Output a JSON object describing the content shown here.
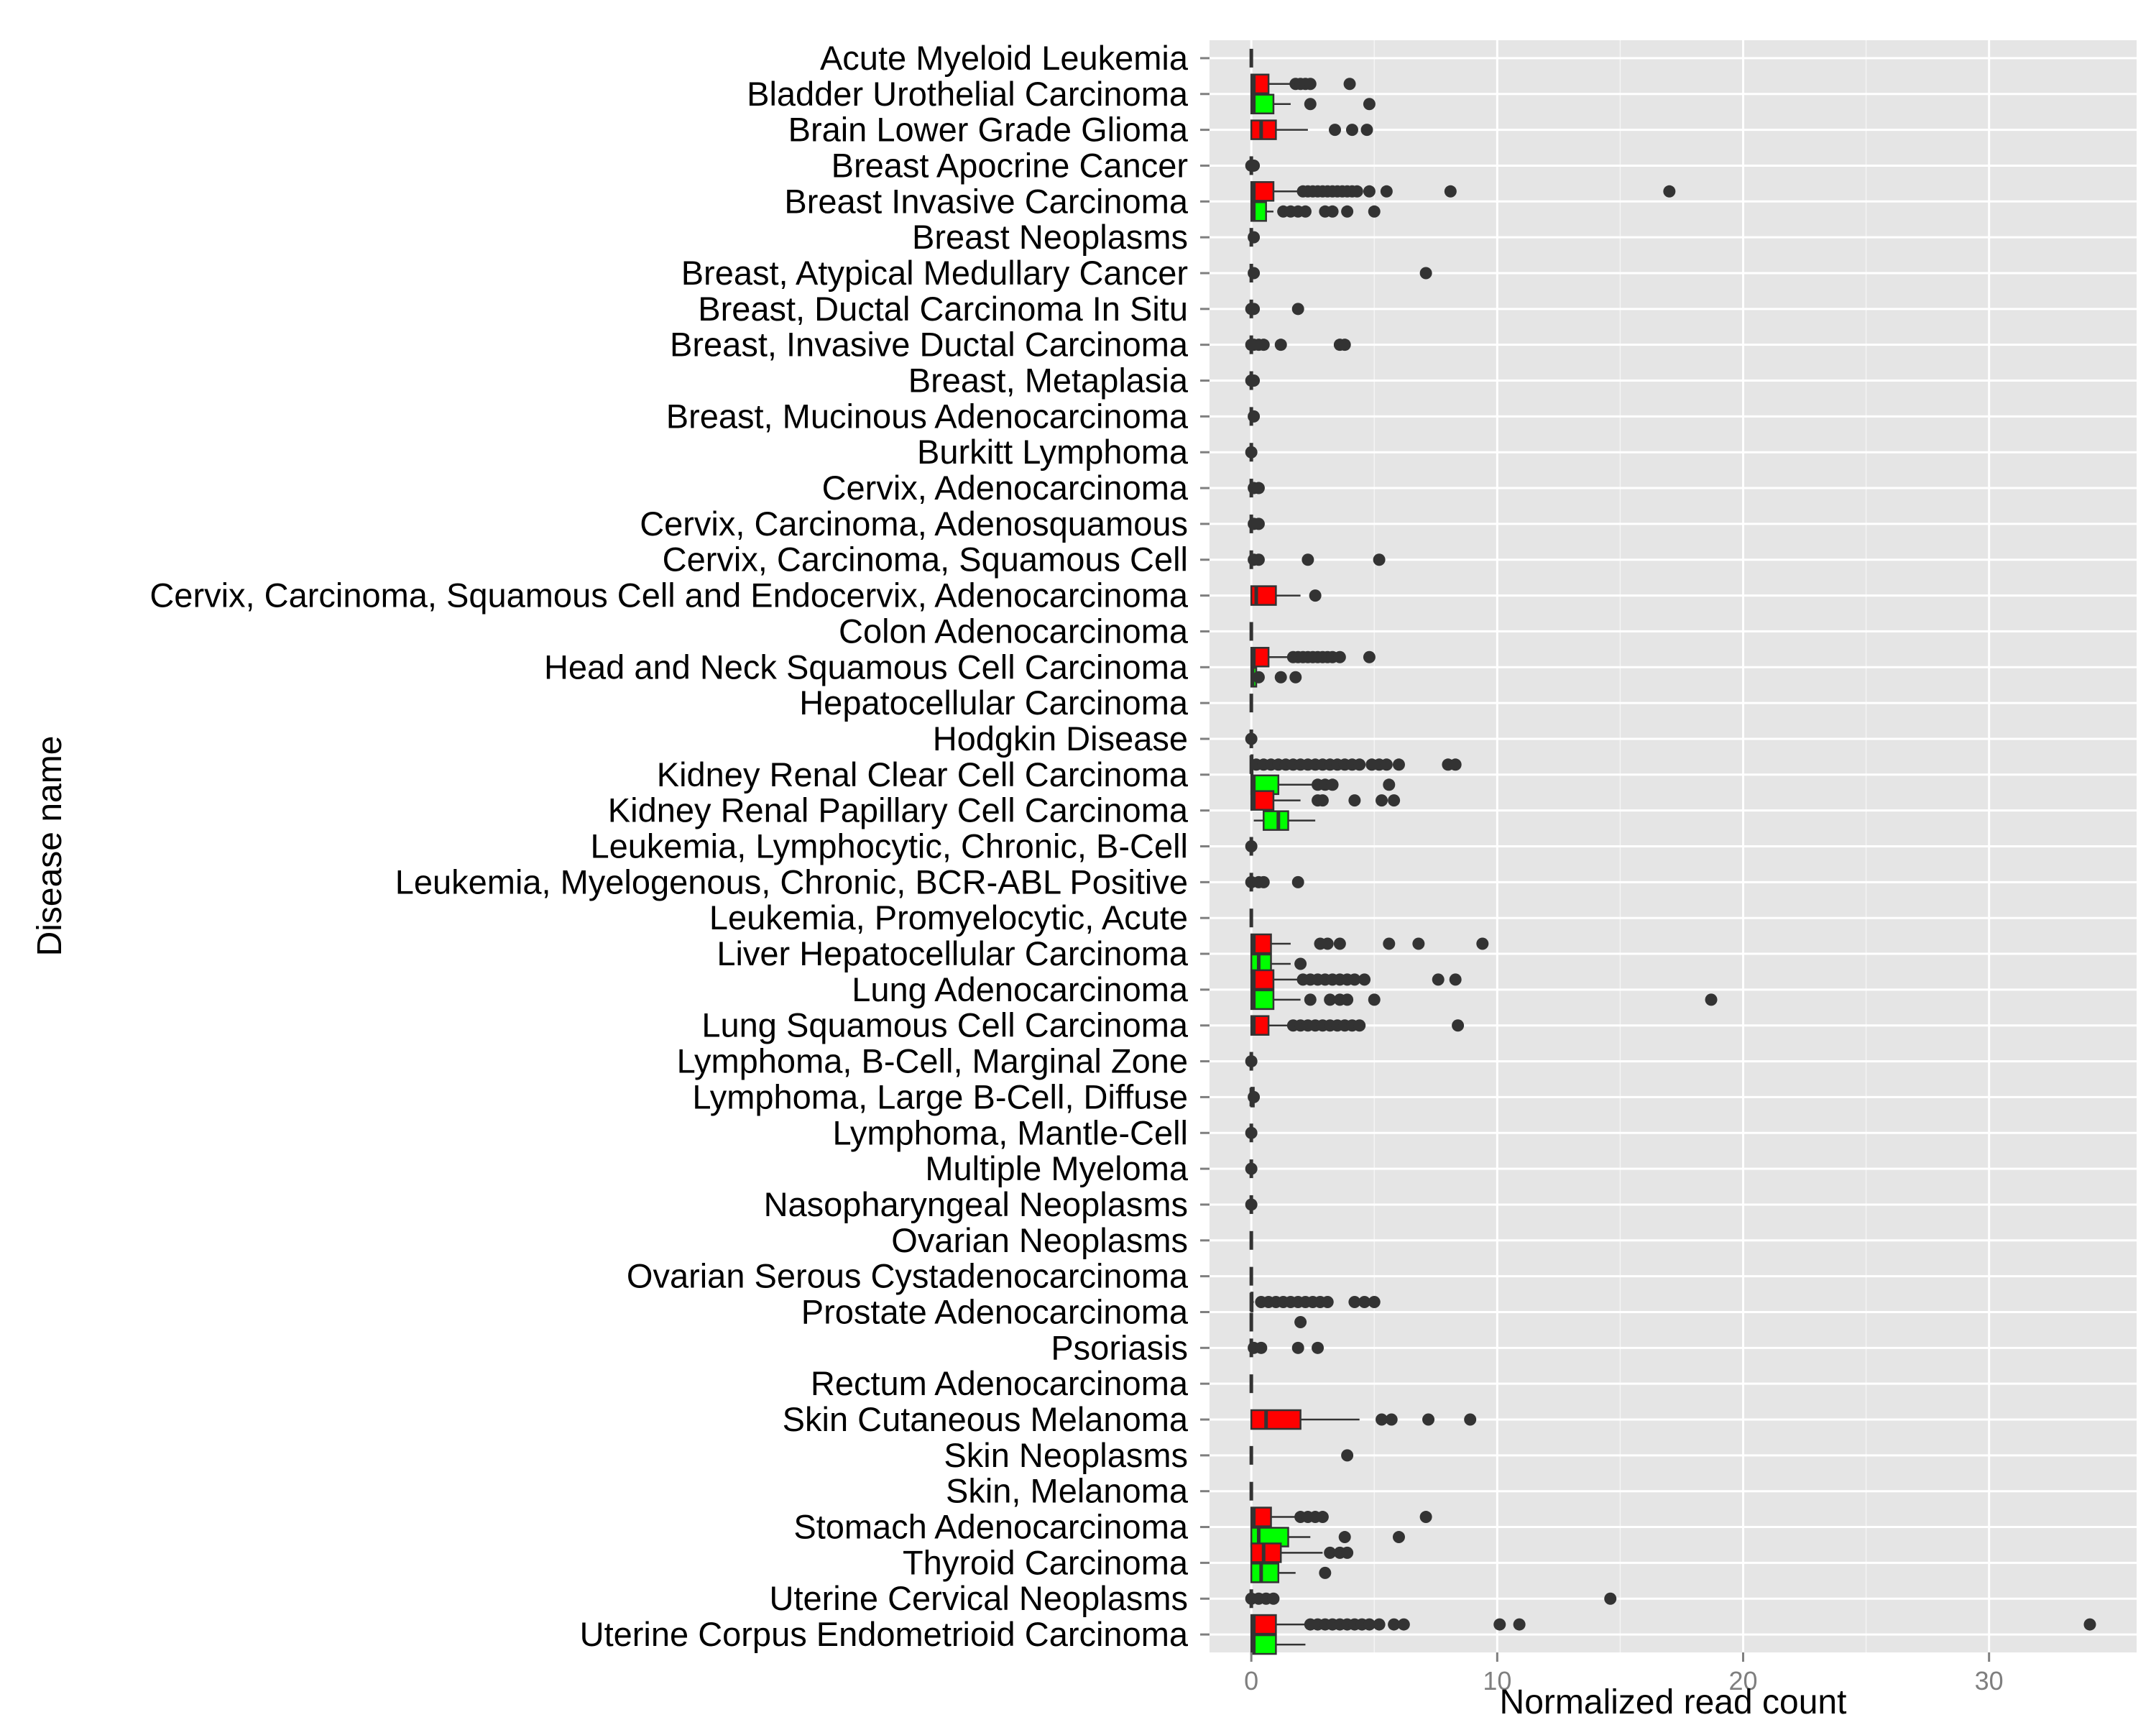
{
  "chart_data": {
    "type": "boxplot",
    "orientation": "horizontal",
    "xlabel": "Normalized read count",
    "ylabel": "Disease name",
    "xlim": [
      -1.7,
      36.0
    ],
    "xticks": [
      0,
      10,
      20,
      30
    ],
    "grid": true,
    "legend": "none",
    "colors": {
      "panel_bg": "#e5e5e5",
      "grid": "#ffffff",
      "box_red": "#ff0000",
      "box_green": "#00ff00",
      "outline": "#333333",
      "outlier": "#333333",
      "tick_text": "#7f7f7f",
      "label_text": "#000000"
    },
    "categories": [
      {
        "name": "Acute Myeloid Leukemia",
        "boxes": [
          {
            "color": "red",
            "q1": 0,
            "median": 0,
            "q3": 0,
            "lo": 0,
            "hi": 0,
            "outliers": []
          }
        ]
      },
      {
        "name": "Bladder Urothelial Carcinoma",
        "boxes": [
          {
            "color": "red",
            "q1": 0,
            "median": 0.1,
            "q3": 0.7,
            "lo": 0,
            "hi": 1.6,
            "outliers": [
              1.8,
              2.0,
              2.2,
              2.4,
              4.0
            ]
          },
          {
            "color": "green",
            "q1": 0,
            "median": 0.1,
            "q3": 0.9,
            "lo": 0,
            "hi": 1.6,
            "outliers": [
              2.4,
              4.8
            ]
          }
        ]
      },
      {
        "name": "Brain Lower Grade Glioma",
        "boxes": [
          {
            "color": "red",
            "q1": 0,
            "median": 0.4,
            "q3": 1.0,
            "lo": 0,
            "hi": 2.3,
            "outliers": [
              3.4,
              4.1,
              4.7
            ]
          }
        ]
      },
      {
        "name": "Breast Apocrine Cancer",
        "boxes": [
          {
            "color": "red",
            "q1": 0,
            "median": 0,
            "q3": 0,
            "lo": 0,
            "hi": 0,
            "outliers": [
              0.0,
              0.1
            ]
          }
        ]
      },
      {
        "name": "Breast Invasive Carcinoma",
        "boxes": [
          {
            "color": "red",
            "q1": 0,
            "median": 0.1,
            "q3": 0.9,
            "lo": 0,
            "hi": 2.0,
            "outliers": [
              2.1,
              2.3,
              2.5,
              2.7,
              2.9,
              3.1,
              3.3,
              3.5,
              3.7,
              3.9,
              4.1,
              4.3,
              4.8,
              5.5,
              8.1,
              17.0
            ]
          },
          {
            "color": "green",
            "q1": 0,
            "median": 0.1,
            "q3": 0.6,
            "lo": 0,
            "hi": 0.9,
            "outliers": [
              1.3,
              1.6,
              1.9,
              2.2,
              3.0,
              3.3,
              3.9,
              5.0
            ]
          }
        ]
      },
      {
        "name": "Breast Neoplasms",
        "boxes": [
          {
            "color": "red",
            "q1": 0,
            "median": 0,
            "q3": 0,
            "lo": 0,
            "hi": 0,
            "outliers": [
              0.1
            ]
          }
        ]
      },
      {
        "name": "Breast, Atypical Medullary Cancer",
        "boxes": [
          {
            "color": "red",
            "q1": 0,
            "median": 0,
            "q3": 0,
            "lo": 0,
            "hi": 0,
            "outliers": [
              0.1,
              7.1
            ]
          }
        ]
      },
      {
        "name": "Breast, Ductal Carcinoma In Situ",
        "boxes": [
          {
            "color": "red",
            "q1": 0,
            "median": 0,
            "q3": 0,
            "lo": 0,
            "hi": 0,
            "outliers": [
              0.0,
              0.1,
              1.9
            ]
          }
        ]
      },
      {
        "name": "Breast, Invasive Ductal Carcinoma",
        "boxes": [
          {
            "color": "red",
            "q1": 0,
            "median": 0,
            "q3": 0,
            "lo": 0,
            "hi": 0,
            "outliers": [
              0.0,
              0.1,
              0.3,
              0.5,
              1.2,
              3.6,
              3.8
            ]
          }
        ]
      },
      {
        "name": "Breast, Metaplasia",
        "boxes": [
          {
            "color": "red",
            "q1": 0,
            "median": 0,
            "q3": 0,
            "lo": 0,
            "hi": 0,
            "outliers": [
              0.0,
              0.1
            ]
          }
        ]
      },
      {
        "name": "Breast, Mucinous Adenocarcinoma",
        "boxes": [
          {
            "color": "red",
            "q1": 0,
            "median": 0,
            "q3": 0,
            "lo": 0,
            "hi": 0,
            "outliers": [
              0.1
            ]
          }
        ]
      },
      {
        "name": "Burkitt Lymphoma",
        "boxes": [
          {
            "color": "red",
            "q1": 0,
            "median": 0,
            "q3": 0,
            "lo": 0,
            "hi": 0,
            "outliers": [
              0.0
            ]
          }
        ]
      },
      {
        "name": "Cervix, Adenocarcinoma",
        "boxes": [
          {
            "color": "red",
            "q1": 0,
            "median": 0,
            "q3": 0,
            "lo": 0,
            "hi": 0,
            "outliers": [
              0.1,
              0.3
            ]
          }
        ]
      },
      {
        "name": "Cervix, Carcinoma, Adenosquamous",
        "boxes": [
          {
            "color": "red",
            "q1": 0,
            "median": 0,
            "q3": 0,
            "lo": 0,
            "hi": 0,
            "outliers": [
              0.1,
              0.3
            ]
          }
        ]
      },
      {
        "name": "Cervix, Carcinoma, Squamous Cell",
        "boxes": [
          {
            "color": "red",
            "q1": 0,
            "median": 0,
            "q3": 0,
            "lo": 0,
            "hi": 0,
            "outliers": [
              0.1,
              0.3,
              2.3,
              5.2
            ]
          }
        ]
      },
      {
        "name": "Cervix, Carcinoma, Squamous Cell and Endocervix, Adenocarcinoma",
        "boxes": [
          {
            "color": "red",
            "q1": 0,
            "median": 0.2,
            "q3": 1.0,
            "lo": 0,
            "hi": 2.0,
            "outliers": [
              2.6
            ]
          }
        ]
      },
      {
        "name": "Colon Adenocarcinoma",
        "boxes": [
          {
            "color": "red",
            "q1": 0,
            "median": 0,
            "q3": 0,
            "lo": 0,
            "hi": 0,
            "outliers": []
          }
        ]
      },
      {
        "name": "Head and Neck Squamous Cell Carcinoma",
        "boxes": [
          {
            "color": "red",
            "q1": 0,
            "median": 0.1,
            "q3": 0.7,
            "lo": 0,
            "hi": 1.5,
            "outliers": [
              1.7,
              1.9,
              2.1,
              2.3,
              2.5,
              2.7,
              2.9,
              3.1,
              3.3,
              3.6,
              4.8
            ]
          },
          {
            "color": "green",
            "q1": 0,
            "median": 0.05,
            "q3": 0.2,
            "lo": 0,
            "hi": 0.3,
            "outliers": [
              0.3,
              1.2,
              1.8
            ]
          }
        ]
      },
      {
        "name": "Hepatocellular Carcinoma",
        "boxes": [
          {
            "color": "red",
            "q1": 0,
            "median": 0,
            "q3": 0,
            "lo": 0,
            "hi": 0,
            "outliers": []
          }
        ]
      },
      {
        "name": "Hodgkin Disease",
        "boxes": [
          {
            "color": "red",
            "q1": 0,
            "median": 0,
            "q3": 0,
            "lo": 0,
            "hi": 0,
            "outliers": [
              0.0
            ]
          }
        ]
      },
      {
        "name": "Kidney Renal Clear Cell Carcinoma",
        "boxes": [
          {
            "color": "red",
            "q1": 0,
            "median": 0,
            "q3": 0.05,
            "lo": 0,
            "hi": 0.1,
            "outliers": [
              0.2,
              0.5,
              0.8,
              1.1,
              1.4,
              1.7,
              2.0,
              2.3,
              2.6,
              2.9,
              3.2,
              3.5,
              3.8,
              4.1,
              4.4,
              4.9,
              5.2,
              5.5,
              6.0,
              8.0,
              8.3
            ]
          },
          {
            "color": "green",
            "q1": 0,
            "median": 0.1,
            "q3": 1.1,
            "lo": 0,
            "hi": 2.5,
            "outliers": [
              2.7,
              3.0,
              3.3,
              5.6
            ]
          }
        ]
      },
      {
        "name": "Kidney Renal Papillary Cell Carcinoma",
        "boxes": [
          {
            "color": "red",
            "q1": 0,
            "median": 0.1,
            "q3": 0.9,
            "lo": 0,
            "hi": 2.0,
            "outliers": [
              2.7,
              2.9,
              4.2,
              5.3,
              5.8
            ]
          },
          {
            "color": "green",
            "q1": 0.5,
            "median": 1.1,
            "q3": 1.5,
            "lo": 0.1,
            "hi": 2.6,
            "outliers": []
          }
        ]
      },
      {
        "name": "Leukemia, Lymphocytic, Chronic, B-Cell",
        "boxes": [
          {
            "color": "red",
            "q1": 0,
            "median": 0,
            "q3": 0,
            "lo": 0,
            "hi": 0,
            "outliers": [
              0.0
            ]
          }
        ]
      },
      {
        "name": "Leukemia, Myelogenous, Chronic, BCR-ABL Positive",
        "boxes": [
          {
            "color": "red",
            "q1": 0,
            "median": 0,
            "q3": 0,
            "lo": 0,
            "hi": 0,
            "outliers": [
              0.0,
              0.3,
              0.5,
              1.9
            ]
          }
        ]
      },
      {
        "name": "Leukemia, Promyelocytic, Acute",
        "boxes": [
          {
            "color": "red",
            "q1": 0,
            "median": 0,
            "q3": 0,
            "lo": 0,
            "hi": 0,
            "outliers": []
          }
        ]
      },
      {
        "name": "Liver Hepatocellular Carcinoma",
        "boxes": [
          {
            "color": "red",
            "q1": 0,
            "median": 0.1,
            "q3": 0.8,
            "lo": 0,
            "hi": 1.6,
            "outliers": [
              2.8,
              3.1,
              3.6,
              5.6,
              6.8,
              9.4
            ]
          },
          {
            "color": "green",
            "q1": 0,
            "median": 0.3,
            "q3": 0.8,
            "lo": 0,
            "hi": 1.6,
            "outliers": [
              2.0
            ]
          }
        ]
      },
      {
        "name": "Lung Adenocarcinoma",
        "boxes": [
          {
            "color": "red",
            "q1": 0,
            "median": 0.1,
            "q3": 0.9,
            "lo": 0,
            "hi": 2.0,
            "outliers": [
              2.1,
              2.4,
              2.7,
              3.0,
              3.3,
              3.6,
              3.9,
              4.2,
              4.6,
              7.6,
              8.3
            ]
          },
          {
            "color": "green",
            "q1": 0,
            "median": 0.1,
            "q3": 0.9,
            "lo": 0,
            "hi": 2.0,
            "outliers": [
              2.4,
              3.2,
              3.6,
              3.9,
              5.0,
              18.7
            ]
          }
        ]
      },
      {
        "name": "Lung Squamous Cell Carcinoma",
        "boxes": [
          {
            "color": "red",
            "q1": 0,
            "median": 0.1,
            "q3": 0.7,
            "lo": 0,
            "hi": 1.5,
            "outliers": [
              1.7,
              2.0,
              2.3,
              2.6,
              2.9,
              3.2,
              3.5,
              3.8,
              4.1,
              4.4,
              8.4
            ]
          }
        ]
      },
      {
        "name": "Lymphoma, B-Cell, Marginal Zone",
        "boxes": [
          {
            "color": "red",
            "q1": 0,
            "median": 0,
            "q3": 0,
            "lo": 0,
            "hi": 0,
            "outliers": [
              0.0
            ]
          }
        ]
      },
      {
        "name": "Lymphoma, Large B-Cell, Diffuse",
        "boxes": [
          {
            "color": "red",
            "q1": 0,
            "median": 0,
            "q3": 0.1,
            "lo": 0,
            "hi": 0.3,
            "outliers": [
              0.1
            ]
          }
        ]
      },
      {
        "name": "Lymphoma, Mantle-Cell",
        "boxes": [
          {
            "color": "red",
            "q1": 0,
            "median": 0,
            "q3": 0,
            "lo": 0,
            "hi": 0,
            "outliers": [
              0.0
            ]
          }
        ]
      },
      {
        "name": "Multiple Myeloma",
        "boxes": [
          {
            "color": "red",
            "q1": 0,
            "median": 0,
            "q3": 0,
            "lo": 0,
            "hi": 0,
            "outliers": [
              0.0
            ]
          }
        ]
      },
      {
        "name": "Nasopharyngeal Neoplasms",
        "boxes": [
          {
            "color": "red",
            "q1": 0,
            "median": 0,
            "q3": 0,
            "lo": 0,
            "hi": 0,
            "outliers": [
              0.0
            ]
          }
        ]
      },
      {
        "name": "Ovarian Neoplasms",
        "boxes": [
          {
            "color": "red",
            "q1": 0,
            "median": 0,
            "q3": 0,
            "lo": 0,
            "hi": 0,
            "outliers": []
          }
        ]
      },
      {
        "name": "Ovarian Serous Cystadenocarcinoma",
        "boxes": [
          {
            "color": "red",
            "q1": 0,
            "median": 0,
            "q3": 0,
            "lo": 0,
            "hi": 0,
            "outliers": []
          }
        ]
      },
      {
        "name": "Prostate Adenocarcinoma",
        "boxes": [
          {
            "color": "red",
            "q1": 0,
            "median": 0,
            "q3": 0.05,
            "lo": 0,
            "hi": 0.1,
            "outliers": [
              0.4,
              0.7,
              1.0,
              1.3,
              1.6,
              1.9,
              2.2,
              2.5,
              2.8,
              3.1,
              4.2,
              4.6,
              5.0
            ]
          },
          {
            "color": "green",
            "q1": 0,
            "median": 0,
            "q3": 0,
            "lo": 0,
            "hi": 0,
            "outliers": [
              2.0
            ]
          }
        ]
      },
      {
        "name": "Psoriasis",
        "boxes": [
          {
            "color": "red",
            "q1": 0,
            "median": 0,
            "q3": 0,
            "lo": 0,
            "hi": 0,
            "outliers": [
              0.1,
              0.4,
              1.9,
              2.7
            ]
          }
        ]
      },
      {
        "name": "Rectum Adenocarcinoma",
        "boxes": [
          {
            "color": "red",
            "q1": 0,
            "median": 0,
            "q3": 0,
            "lo": 0,
            "hi": 0,
            "outliers": []
          }
        ]
      },
      {
        "name": "Skin Cutaneous Melanoma",
        "boxes": [
          {
            "color": "red",
            "q1": 0,
            "median": 0.6,
            "q3": 2.0,
            "lo": 0,
            "hi": 4.4,
            "outliers": [
              5.3,
              5.7,
              7.2,
              8.9
            ]
          }
        ]
      },
      {
        "name": "Skin Neoplasms",
        "boxes": [
          {
            "color": "red",
            "q1": 0,
            "median": 0,
            "q3": 0,
            "lo": 0,
            "hi": 0,
            "outliers": [
              3.9
            ]
          }
        ]
      },
      {
        "name": "Skin, Melanoma",
        "boxes": [
          {
            "color": "red",
            "q1": 0,
            "median": 0,
            "q3": 0,
            "lo": 0,
            "hi": 0,
            "outliers": []
          }
        ]
      },
      {
        "name": "Stomach Adenocarcinoma",
        "boxes": [
          {
            "color": "red",
            "q1": 0,
            "median": 0.1,
            "q3": 0.8,
            "lo": 0,
            "hi": 1.8,
            "outliers": [
              2.0,
              2.3,
              2.6,
              2.9,
              7.1
            ]
          },
          {
            "color": "green",
            "q1": 0,
            "median": 0.3,
            "q3": 1.5,
            "lo": 0,
            "hi": 2.4,
            "outliers": [
              3.8,
              6.0
            ]
          }
        ]
      },
      {
        "name": "Thyroid Carcinoma",
        "boxes": [
          {
            "color": "red",
            "q1": 0,
            "median": 0.5,
            "q3": 1.2,
            "lo": 0,
            "hi": 2.9,
            "outliers": [
              3.2,
              3.6,
              3.9
            ]
          },
          {
            "color": "green",
            "q1": 0,
            "median": 0.4,
            "q3": 1.1,
            "lo": 0,
            "hi": 1.8,
            "outliers": [
              3.0
            ]
          }
        ]
      },
      {
        "name": "Uterine Cervical Neoplasms",
        "boxes": [
          {
            "color": "red",
            "q1": 0,
            "median": 0,
            "q3": 0,
            "lo": 0,
            "hi": 0,
            "outliers": [
              0.0,
              0.3,
              0.6,
              0.9,
              14.6
            ]
          }
        ]
      },
      {
        "name": "Uterine Corpus Endometrioid Carcinoma",
        "boxes": [
          {
            "color": "red",
            "q1": 0,
            "median": 0.1,
            "q3": 1.0,
            "lo": 0,
            "hi": 2.2,
            "outliers": [
              2.4,
              2.7,
              3.0,
              3.3,
              3.6,
              3.9,
              4.2,
              4.5,
              4.8,
              5.2,
              5.8,
              6.2,
              10.1,
              10.9,
              34.1
            ]
          },
          {
            "color": "green",
            "q1": 0,
            "median": 0.1,
            "q3": 1.0,
            "lo": 0,
            "hi": 2.2,
            "outliers": []
          }
        ]
      }
    ]
  }
}
